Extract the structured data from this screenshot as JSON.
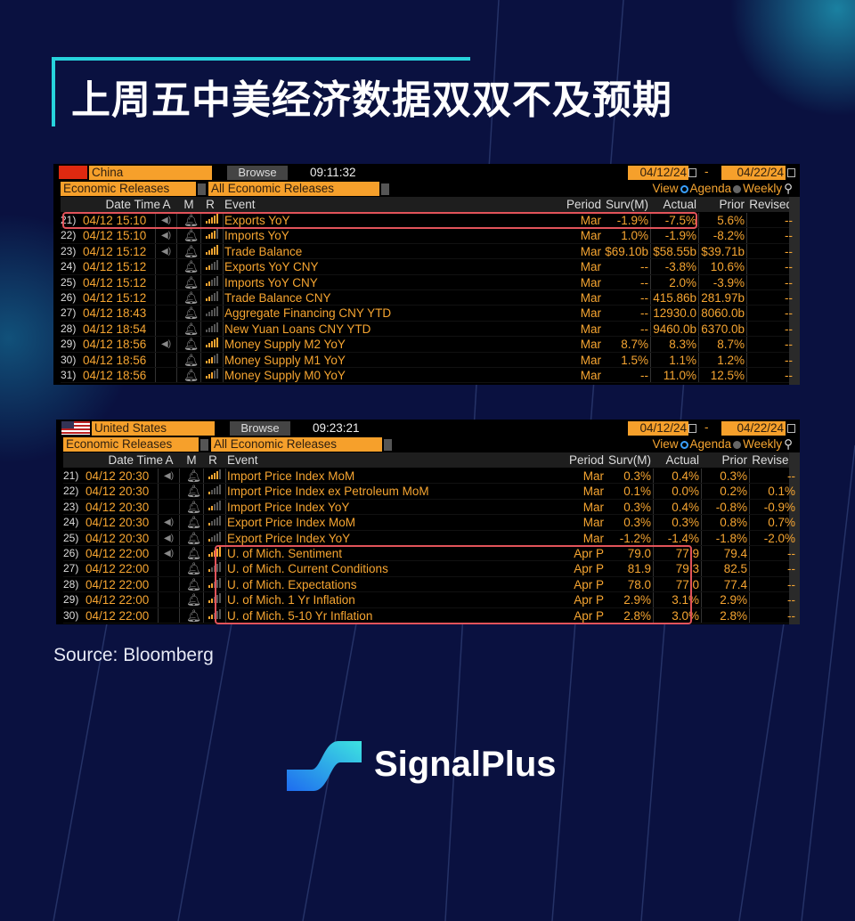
{
  "title": "上周五中美经济数据双双不及预期",
  "source": "Source: Bloomberg",
  "brand": {
    "name": "SignalPlus"
  },
  "colors": {
    "accent": "#27d3dc",
    "bloomberg_orange": "#f6a531",
    "highlight": "#e2535a"
  },
  "columns": {
    "date_time": "Date Time",
    "a": "A",
    "m": "M",
    "r": "R",
    "event": "Event",
    "period": "Period",
    "surv": "Surv(M)",
    "actual": "Actual",
    "prior": "Prior",
    "revised": "Revised"
  },
  "panels": [
    {
      "country": "China",
      "flag": "china-flag",
      "browse": "Browse",
      "time": "09:11:32",
      "date_from": "04/12/24",
      "date_sep": "-",
      "date_to": "04/22/24",
      "category": "Economic Releases",
      "filter": "All Economic Releases",
      "view_label": "View",
      "view_agenda": "Agenda",
      "view_weekly": "Weekly",
      "view_selected": "Agenda",
      "rows": [
        {
          "n": "21)",
          "dt": "04/12 15:10",
          "a": true,
          "rel": 5,
          "event": "Exports YoY",
          "period": "Mar",
          "surv": "-1.9%",
          "actual": "-7.5%",
          "prior": "5.6%",
          "revised": "--",
          "highlight": true
        },
        {
          "n": "22)",
          "dt": "04/12 15:10",
          "a": true,
          "rel": 4,
          "event": "Imports YoY",
          "period": "Mar",
          "surv": "1.0%",
          "actual": "-1.9%",
          "prior": "-8.2%",
          "revised": "--"
        },
        {
          "n": "23)",
          "dt": "04/12 15:12",
          "a": true,
          "rel": 5,
          "event": "Trade Balance",
          "period": "Mar",
          "surv": "$69.10b",
          "actual": "$58.55b",
          "prior": "$39.71b",
          "revised": "--"
        },
        {
          "n": "24)",
          "dt": "04/12 15:12",
          "a": false,
          "rel": 2,
          "event": "Exports YoY CNY",
          "period": "Mar",
          "surv": "--",
          "actual": "-3.8%",
          "prior": "10.6%",
          "revised": "--"
        },
        {
          "n": "25)",
          "dt": "04/12 15:12",
          "a": false,
          "rel": 2,
          "event": "Imports YoY CNY",
          "period": "Mar",
          "surv": "--",
          "actual": "2.0%",
          "prior": "-3.9%",
          "revised": "--"
        },
        {
          "n": "26)",
          "dt": "04/12 15:12",
          "a": false,
          "rel": 2,
          "event": "Trade Balance CNY",
          "period": "Mar",
          "surv": "--",
          "actual": "415.86b",
          "prior": "281.97b",
          "revised": "--"
        },
        {
          "n": "27)",
          "dt": "04/12 18:43",
          "a": false,
          "rel": 0,
          "event": "Aggregate Financing CNY YTD",
          "period": "Mar",
          "surv": "--",
          "actual": "12930.0",
          "prior": "8060.0b",
          "revised": "--"
        },
        {
          "n": "28)",
          "dt": "04/12 18:54",
          "a": false,
          "rel": 0,
          "event": "New Yuan Loans CNY YTD",
          "period": "Mar",
          "surv": "--",
          "actual": "9460.0b",
          "prior": "6370.0b",
          "revised": "--"
        },
        {
          "n": "29)",
          "dt": "04/12 18:56",
          "a": true,
          "rel": 5,
          "event": "Money Supply M2 YoY",
          "period": "Mar",
          "surv": "8.7%",
          "actual": "8.3%",
          "prior": "8.7%",
          "revised": "--"
        },
        {
          "n": "30)",
          "dt": "04/12 18:56",
          "a": false,
          "rel": 3,
          "event": "Money Supply M1 YoY",
          "period": "Mar",
          "surv": "1.5%",
          "actual": "1.1%",
          "prior": "1.2%",
          "revised": "--"
        },
        {
          "n": "31)",
          "dt": "04/12 18:56",
          "a": false,
          "rel": 3,
          "event": "Money Supply M0 YoY",
          "period": "Mar",
          "surv": "--",
          "actual": "11.0%",
          "prior": "12.5%",
          "revised": "--"
        }
      ]
    },
    {
      "country": "United States",
      "flag": "us-flag",
      "browse": "Browse",
      "time": "09:23:21",
      "date_from": "04/12/24",
      "date_sep": "-",
      "date_to": "04/22/24",
      "category": "Economic Releases",
      "filter": "All Economic Releases",
      "view_label": "View",
      "view_agenda": "Agenda",
      "view_weekly": "Weekly",
      "view_selected": "Agenda",
      "rows": [
        {
          "n": "21)",
          "dt": "04/12 20:30",
          "a": true,
          "rel": 4,
          "event": "Import Price Index MoM",
          "period": "Mar",
          "surv": "0.3%",
          "actual": "0.4%",
          "prior": "0.3%",
          "revised": "--"
        },
        {
          "n": "22)",
          "dt": "04/12 20:30",
          "a": false,
          "rel": 1,
          "event": "Import Price Index ex Petroleum MoM",
          "period": "Mar",
          "surv": "0.1%",
          "actual": "0.0%",
          "prior": "0.2%",
          "revised": "0.1%"
        },
        {
          "n": "23)",
          "dt": "04/12 20:30",
          "a": false,
          "rel": 2,
          "event": "Import Price Index YoY",
          "period": "Mar",
          "surv": "0.3%",
          "actual": "0.4%",
          "prior": "-0.8%",
          "revised": "-0.9%"
        },
        {
          "n": "24)",
          "dt": "04/12 20:30",
          "a": true,
          "rel": 1,
          "event": "Export Price Index MoM",
          "period": "Mar",
          "surv": "0.3%",
          "actual": "0.3%",
          "prior": "0.8%",
          "revised": "0.7%"
        },
        {
          "n": "25)",
          "dt": "04/12 20:30",
          "a": true,
          "rel": 1,
          "event": "Export Price Index YoY",
          "period": "Mar",
          "surv": "-1.2%",
          "actual": "-1.4%",
          "prior": "-1.8%",
          "revised": "-2.0%"
        },
        {
          "n": "26)",
          "dt": "04/12 22:00",
          "a": true,
          "rel": 5,
          "event": "U. of Mich. Sentiment",
          "period": "Apr P",
          "surv": "79.0",
          "actual": "77.9",
          "prior": "79.4",
          "revised": "--",
          "highlight": true
        },
        {
          "n": "27)",
          "dt": "04/12 22:00",
          "a": false,
          "rel": 1,
          "event": "U. of Mich. Current Conditions",
          "period": "Apr P",
          "surv": "81.9",
          "actual": "79.3",
          "prior": "82.5",
          "revised": "--",
          "highlight": true
        },
        {
          "n": "28)",
          "dt": "04/12 22:00",
          "a": false,
          "rel": 2,
          "event": "U. of Mich. Expectations",
          "period": "Apr P",
          "surv": "78.0",
          "actual": "77.0",
          "prior": "77.4",
          "revised": "--",
          "highlight": true
        },
        {
          "n": "29)",
          "dt": "04/12 22:00",
          "a": false,
          "rel": 2,
          "event": "U. of Mich. 1 Yr Inflation",
          "period": "Apr P",
          "surv": "2.9%",
          "actual": "3.1%",
          "prior": "2.9%",
          "revised": "--",
          "highlight": true
        },
        {
          "n": "30)",
          "dt": "04/12 22:00",
          "a": false,
          "rel": 2,
          "event": "U. of Mich. 5-10 Yr Inflation",
          "period": "Apr P",
          "surv": "2.8%",
          "actual": "3.0%",
          "prior": "2.8%",
          "revised": "--",
          "highlight": true
        }
      ]
    }
  ]
}
